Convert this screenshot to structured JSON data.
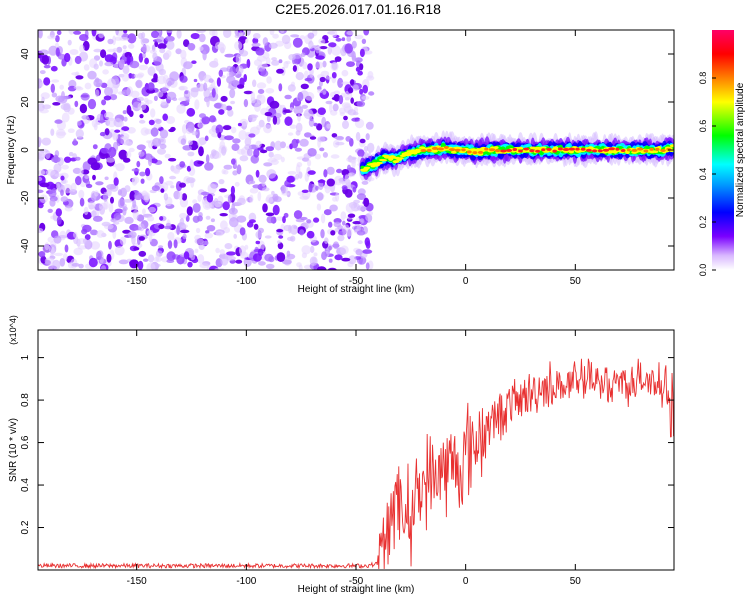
{
  "title": "C2E5.2026.017.01.16.R18",
  "chart_data": [
    {
      "type": "heatmap",
      "title": "C2E5.2026.017.01.16.R18",
      "xlabel": "Height of straight line (km)",
      "ylabel": "Frequency (Hz)",
      "xlim": [
        -195,
        95
      ],
      "ylim": [
        -50,
        50
      ],
      "x_ticks": [
        -150,
        -100,
        -50,
        0,
        50
      ],
      "y_ticks": [
        -40,
        -20,
        0,
        20,
        40
      ],
      "colorbar": {
        "label": "Normalized spectral amplitude",
        "range": [
          0.0,
          1.0
        ],
        "ticks": [
          0.0,
          0.2,
          0.4,
          0.6,
          0.8
        ],
        "colormap": [
          "#ffffff",
          "#c9a6f5",
          "#7a00ff",
          "#0000ff",
          "#00ffff",
          "#00ff00",
          "#ffff00",
          "#ff8000",
          "#ff0000",
          "#ff0066"
        ]
      },
      "noise_region_x": [
        -195,
        -43
      ],
      "signal_track": {
        "x": [
          -47,
          -44,
          -40,
          -36,
          -32,
          -28,
          -24,
          -20,
          -15,
          -10,
          -5,
          0,
          5,
          10,
          20,
          30,
          40,
          50,
          60,
          70,
          80,
          90,
          95
        ],
        "frequency": [
          -8,
          -7,
          -5,
          -3,
          -4,
          -2,
          -1,
          0,
          0,
          1,
          0,
          0,
          -1,
          0,
          0,
          0,
          0,
          0,
          0,
          0,
          0,
          0,
          1
        ],
        "peak_amplitude": [
          0.55,
          0.6,
          0.65,
          0.7,
          0.72,
          0.75,
          0.78,
          0.8,
          0.85,
          0.85,
          0.8,
          0.85,
          0.8,
          0.85,
          0.9,
          0.95,
          0.95,
          0.95,
          0.9,
          0.9,
          0.85,
          0.85,
          0.8
        ]
      }
    },
    {
      "type": "line",
      "xlabel": "Height of straight line (km)",
      "ylabel": "SNR (10 * v/v)",
      "y_scale_note": "(x10^4)",
      "xlim": [
        -195,
        95
      ],
      "ylim": [
        0,
        1.13
      ],
      "x_ticks": [
        -150,
        -100,
        -50,
        0,
        50
      ],
      "y_ticks": [
        0.2,
        0.4,
        0.6,
        0.8,
        1.0
      ],
      "series": [
        {
          "color": "#e83030",
          "x": [
            -195,
            -150,
            -100,
            -60,
            -45,
            -40,
            -38,
            -36,
            -34,
            -32,
            -30,
            -28,
            -26,
            -24,
            -22,
            -20,
            -18,
            -15,
            -12,
            -10,
            -8,
            -5,
            -2,
            0,
            3,
            6,
            10,
            15,
            20,
            25,
            30,
            35,
            40,
            45,
            50,
            55,
            60,
            65,
            70,
            75,
            80,
            85,
            90,
            95
          ],
          "values": [
            0.02,
            0.02,
            0.02,
            0.02,
            0.02,
            0.03,
            0.05,
            0.12,
            0.35,
            0.3,
            0.25,
            0.3,
            0.25,
            0.3,
            0.35,
            0.38,
            0.45,
            0.4,
            0.5,
            0.45,
            0.48,
            0.5,
            0.48,
            0.55,
            0.58,
            0.62,
            0.68,
            0.72,
            0.78,
            0.8,
            0.83,
            0.86,
            0.87,
            0.87,
            0.88,
            0.89,
            0.88,
            0.88,
            0.89,
            0.88,
            0.89,
            0.88,
            0.87,
            0.88
          ]
        }
      ]
    }
  ]
}
